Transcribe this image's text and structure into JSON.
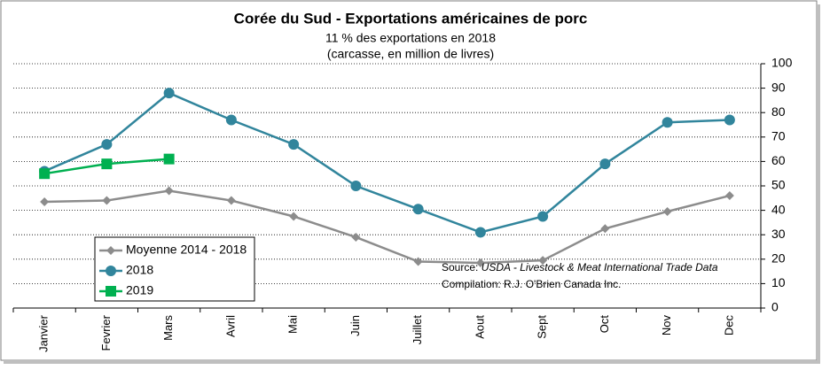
{
  "chart_data": {
    "type": "line",
    "title": "Corée du Sud - Exportations américaines de porc",
    "subtitle": "11 % des exportations en 2018",
    "subtitle2": "(carcasse, en million de livres)",
    "source_label": "Source:",
    "source_text": "USDA - Livestock & Meat International Trade Data",
    "compilation": "Compilation: R.J. O'Brien Canada Inc.",
    "categories": [
      "Janvier",
      "Fevrier",
      "Mars",
      "Avril",
      "Mai",
      "Juin",
      "Juillet",
      "Aout",
      "Sept",
      "Oct",
      "Nov",
      "Dec"
    ],
    "series": [
      {
        "name": "Moyenne 2014 - 2018",
        "color": "#8c8c8c",
        "marker": "diamond",
        "values": [
          43.5,
          44,
          48,
          44,
          37.5,
          29,
          19,
          18.5,
          19.5,
          32.5,
          39.5,
          46
        ]
      },
      {
        "name": "2018",
        "color": "#31859c",
        "marker": "circle",
        "values": [
          56,
          67,
          88,
          77,
          67,
          50,
          40.5,
          31,
          37.5,
          59,
          76,
          77
        ]
      },
      {
        "name": "2019",
        "color": "#00b050",
        "marker": "square",
        "values": [
          55,
          59,
          61,
          null,
          null,
          null,
          null,
          null,
          null,
          null,
          null,
          null
        ]
      }
    ],
    "ylim": [
      0,
      100
    ],
    "yticks": [
      0,
      10,
      20,
      30,
      40,
      50,
      60,
      70,
      80,
      90,
      100
    ],
    "grid": true,
    "y_axis_side": "right",
    "legend": "bottom-left"
  }
}
